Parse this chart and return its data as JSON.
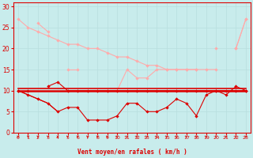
{
  "bg_color": "#c8ecec",
  "grid_color": "#b8dede",
  "dark_color": "#dd0000",
  "light_color": "#ffaaaa",
  "xlabel": "Vent moyen/en rafales ( km/h )",
  "ylim": [
    0,
    31
  ],
  "xlim": [
    -0.5,
    23.5
  ],
  "yticks": [
    0,
    5,
    10,
    15,
    20,
    25,
    30
  ],
  "x": [
    0,
    1,
    2,
    3,
    4,
    5,
    6,
    7,
    8,
    9,
    10,
    11,
    12,
    13,
    14,
    15,
    16,
    17,
    18,
    19,
    20,
    21,
    22,
    23
  ],
  "light_top": [
    27,
    25,
    null,
    null,
    null,
    null,
    null,
    null,
    null,
    null,
    null,
    null,
    null,
    null,
    null,
    null,
    null,
    null,
    null,
    null,
    null,
    null,
    null,
    null
  ],
  "light_diag": [
    27,
    25,
    23,
    22,
    null,
    null,
    null,
    null,
    null,
    null,
    null,
    null,
    null,
    null,
    null,
    null,
    null,
    null,
    null,
    null,
    null,
    null,
    null,
    null
  ],
  "light_zigzag": [
    null,
    null,
    26,
    24,
    null,
    15,
    15,
    null,
    10,
    10,
    10,
    15,
    13,
    13,
    15,
    15,
    15,
    15,
    15,
    null,
    20,
    null,
    20,
    27
  ],
  "light_flat": [
    27,
    25,
    24,
    23,
    22,
    21,
    21,
    20,
    20,
    19,
    18,
    18,
    17,
    16,
    16,
    15,
    15,
    15,
    15,
    15,
    15,
    null,
    20,
    27
  ],
  "dark_horiz1": [
    10,
    10,
    10,
    10,
    10,
    10,
    10,
    10,
    10,
    10,
    10,
    10,
    10,
    10,
    10,
    10,
    10,
    10,
    10,
    10,
    10,
    10,
    10,
    10
  ],
  "dark_horiz2": [
    10.5,
    10.5,
    10.5,
    10.5,
    10.5,
    10.5,
    10.5,
    10.5,
    10.5,
    10.5,
    10.5,
    10.5,
    10.5,
    10.5,
    10.5,
    10.5,
    10.5,
    10.5,
    10.5,
    10.5,
    10.5,
    10.5,
    10.5,
    10.5
  ],
  "dark_upper": [
    10,
    10,
    null,
    11,
    12,
    10,
    10,
    10,
    10,
    10,
    10,
    10,
    10,
    10,
    10,
    10,
    10,
    10,
    10,
    10,
    10,
    10,
    10,
    10
  ],
  "dark_low": [
    10,
    9,
    8,
    7,
    5,
    6,
    6,
    3,
    3,
    3,
    4,
    7,
    7,
    5,
    5,
    6,
    8,
    7,
    4,
    9,
    10,
    9,
    11,
    10
  ],
  "dark_diag": [
    10,
    null,
    null,
    null,
    null,
    null,
    null,
    null,
    null,
    null,
    null,
    null,
    null,
    null,
    null,
    null,
    null,
    null,
    null,
    null,
    null,
    null,
    null,
    null
  ],
  "wind_arrows_x": [
    0,
    1,
    2,
    3,
    4,
    5,
    6,
    7,
    8,
    9,
    10,
    11,
    12,
    13,
    14,
    15,
    16,
    17,
    18,
    19,
    20,
    21,
    22,
    23
  ]
}
